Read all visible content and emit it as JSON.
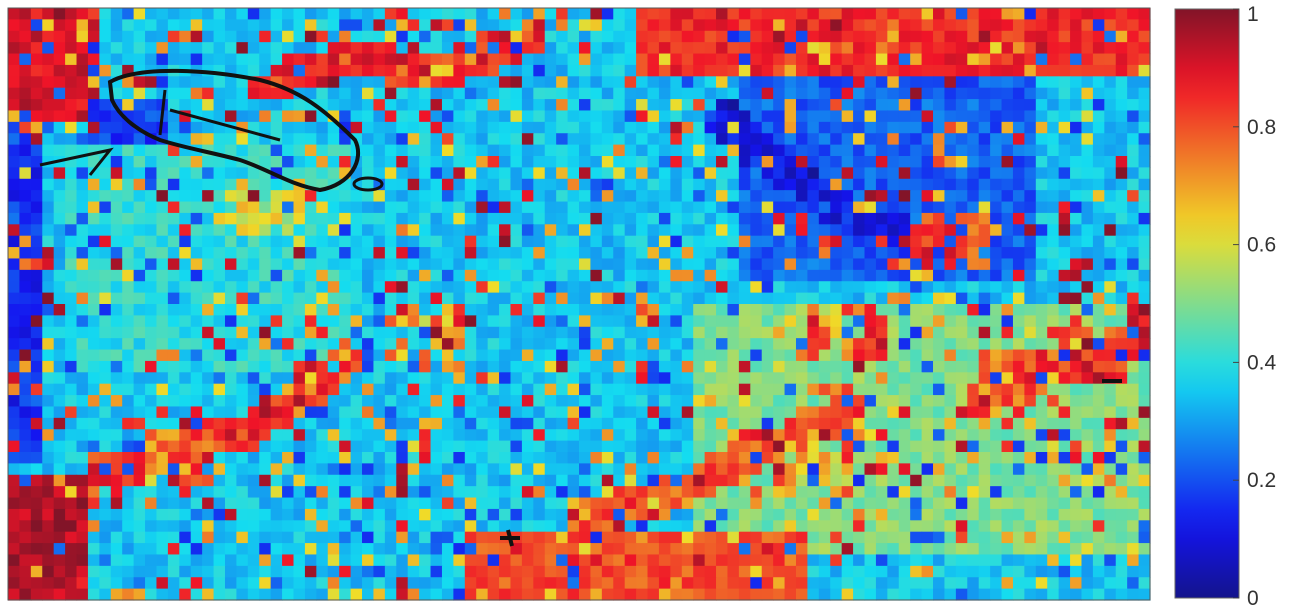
{
  "chart_data": {
    "type": "heatmap",
    "colormap": "jet",
    "grid": false,
    "legend": "colorbar-right",
    "zlim": [
      0,
      1
    ],
    "colorbar_ticks": [
      {
        "value": 0,
        "label": "0"
      },
      {
        "value": 0.2,
        "label": "0.2"
      },
      {
        "value": 0.4,
        "label": "0.4"
      },
      {
        "value": 0.6,
        "label": "0.6"
      },
      {
        "value": 0.8,
        "label": "0.8"
      },
      {
        "value": 1,
        "label": "1"
      }
    ],
    "grid_size": {
      "cols": 100,
      "rows": 52
    },
    "background_value": 0.35,
    "regions": [
      {
        "name": "northwest-corner",
        "value": 0.9,
        "cols": [
          0,
          8
        ],
        "rows": [
          0,
          10
        ]
      },
      {
        "name": "southwest-corner",
        "value": 0.95,
        "cols": [
          0,
          7
        ],
        "rows": [
          41,
          52
        ]
      },
      {
        "name": "west-edge",
        "value": 0.15,
        "cols": [
          0,
          3
        ],
        "rows": [
          10,
          40
        ]
      },
      {
        "name": "northwest-band",
        "value": 0.18,
        "cols": [
          7,
          14
        ],
        "rows": [
          8,
          12
        ]
      },
      {
        "name": "north-strip",
        "value": 0.85,
        "cols": [
          55,
          100
        ],
        "rows": [
          0,
          6
        ]
      },
      {
        "name": "east-plateau",
        "value": 0.5,
        "cols": [
          60,
          100
        ],
        "rows": [
          26,
          48
        ]
      },
      {
        "name": "northeast-blue",
        "value": 0.22,
        "cols": [
          64,
          90
        ],
        "rows": [
          6,
          24
        ]
      },
      {
        "name": "south-strip",
        "value": 0.8,
        "cols": [
          40,
          70
        ],
        "rows": [
          46,
          52
        ]
      },
      {
        "name": "central-west-mix",
        "value": 0.4,
        "cols": [
          5,
          30
        ],
        "rows": [
          12,
          32
        ]
      }
    ],
    "hotspots": [
      {
        "col": 94,
        "row": 30,
        "value": 0.95
      },
      {
        "col": 88,
        "row": 32,
        "value": 0.92
      },
      {
        "col": 73,
        "row": 28,
        "value": 0.9
      },
      {
        "col": 36,
        "row": 29,
        "value": 0.82
      },
      {
        "col": 22,
        "row": 17,
        "value": 0.7
      },
      {
        "col": 15,
        "row": 39,
        "value": 0.85
      },
      {
        "col": 70,
        "row": 40,
        "value": 0.75
      },
      {
        "col": 82,
        "row": 20,
        "value": 0.92
      }
    ],
    "ridges": [
      {
        "value": 0.1,
        "points": [
          [
            62,
            9
          ],
          [
            68,
            14
          ],
          [
            74,
            18
          ],
          [
            80,
            20
          ]
        ]
      },
      {
        "value": 0.85,
        "points": [
          [
            22,
            6
          ],
          [
            30,
            4
          ],
          [
            38,
            5
          ],
          [
            46,
            2
          ]
        ]
      },
      {
        "value": 0.85,
        "points": [
          [
            8,
            40
          ],
          [
            14,
            38
          ],
          [
            20,
            37
          ],
          [
            26,
            33
          ],
          [
            30,
            30
          ]
        ]
      },
      {
        "value": 0.88,
        "points": [
          [
            84,
            34
          ],
          [
            90,
            31
          ],
          [
            96,
            30
          ],
          [
            99,
            27
          ]
        ]
      },
      {
        "value": 0.8,
        "points": [
          [
            50,
            44
          ],
          [
            58,
            42
          ],
          [
            66,
            38
          ],
          [
            74,
            35
          ]
        ]
      }
    ],
    "seed": 7
  }
}
